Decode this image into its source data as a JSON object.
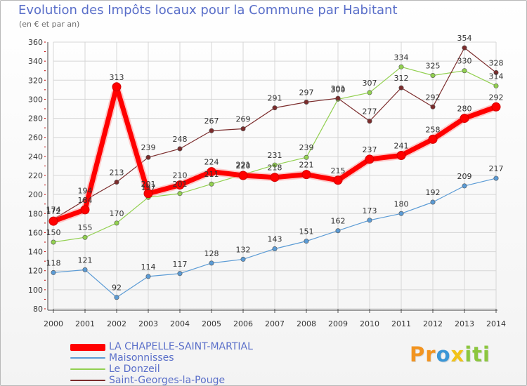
{
  "title": "Evolution des Impôts locaux pour la Commune par Habitant",
  "subtitle": "(en € et par an)",
  "logo": "Proxiti",
  "chart_data": {
    "type": "line",
    "title": "Evolution des Impôts locaux pour la Commune par Habitant",
    "subtitle": "(en € et par an)",
    "xlabel": "",
    "ylabel": "",
    "x": [
      2000,
      2001,
      2002,
      2003,
      2004,
      2005,
      2006,
      2007,
      2008,
      2009,
      2010,
      2011,
      2012,
      2013,
      2014
    ],
    "ylim": [
      80,
      360
    ],
    "yticks": [
      80,
      100,
      120,
      140,
      160,
      180,
      200,
      220,
      240,
      260,
      280,
      300,
      320,
      340,
      360
    ],
    "grid": true,
    "legend_position": "bottom-left",
    "series": [
      {
        "name": "LA CHAPELLE-SAINT-MARTIAL",
        "color": "#ff0000",
        "values": [
          172,
          184,
          313,
          201,
          210,
          224,
          220,
          218,
          221,
          215,
          237,
          241,
          258,
          280,
          292
        ],
        "labels": [
          "172",
          "184",
          "313",
          "201",
          "210",
          "224",
          "220",
          "218",
          "221",
          "215",
          "237",
          "241",
          "258",
          "280",
          "292"
        ]
      },
      {
        "name": "Maisonnisses",
        "color": "#5b9bd5",
        "values": [
          118,
          121,
          92,
          114,
          117,
          128,
          132,
          143,
          151,
          162,
          173,
          180,
          192,
          209,
          217
        ],
        "labels": [
          "118",
          "121",
          "92",
          "114",
          "117",
          "128",
          "132",
          "143",
          "151",
          "162",
          "173",
          "180",
          "192",
          "209",
          "217"
        ]
      },
      {
        "name": "Le Donzeil",
        "color": "#92d050",
        "values": [
          150,
          155,
          170,
          197,
          201,
          211,
          221,
          231,
          239,
          300,
          307,
          334,
          325,
          330,
          314
        ],
        "labels": [
          "150",
          "155",
          "170",
          "197",
          "201",
          "211",
          "221",
          "231",
          "239",
          "300",
          "307",
          "334",
          "325",
          "330",
          "314"
        ]
      },
      {
        "name": "Saint-Georges-la-Pouge",
        "color": "#7b2c2c",
        "values": [
          174,
          194,
          213,
          239,
          248,
          267,
          269,
          291,
          297,
          301,
          277,
          312,
          292,
          354,
          328
        ],
        "labels": [
          "174",
          "194",
          "213",
          "239",
          "248",
          "267",
          "269",
          "291",
          "297",
          "301",
          "277",
          "312",
          "292",
          "354",
          "328"
        ]
      }
    ]
  }
}
